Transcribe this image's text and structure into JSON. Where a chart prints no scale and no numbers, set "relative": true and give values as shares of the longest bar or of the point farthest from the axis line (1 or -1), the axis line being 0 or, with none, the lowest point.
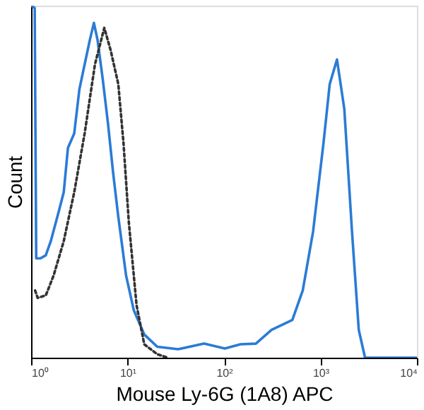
{
  "chart_data": {
    "type": "line",
    "xlabel": "Mouse Ly-6G (1A8) APC",
    "ylabel": "Count",
    "relative": true,
    "log": "x",
    "grid": false,
    "tick_labels": "x",
    "xlim": [
      1,
      10000
    ],
    "xticks": [
      {
        "value": 1,
        "label": "10⁰"
      },
      {
        "value": 10,
        "label": "10¹"
      },
      {
        "value": 100,
        "label": "10²"
      },
      {
        "value": 1000,
        "label": "10³"
      },
      {
        "value": 10000,
        "label": "10⁴"
      }
    ],
    "series": [
      {
        "color": "#2b7bd6",
        "line_style": "solid",
        "x": [
          1.01,
          1.09,
          1.13,
          1.25,
          1.42,
          1.6,
          1.93,
          2.18,
          2.41,
          2.8,
          3.17,
          3.59,
          4.06,
          4.48,
          4.89,
          5.53,
          6.27,
          7.08,
          8.02,
          9.66,
          11.6,
          14.9,
          20.3,
          33.4,
          62.1,
          102,
          148,
          214,
          311,
          511,
          655,
          838,
          1074,
          1247,
          1483,
          1766,
          2123,
          2495,
          2897,
          10000
        ],
        "values": [
          1.0,
          0.993,
          0.282,
          0.282,
          0.291,
          0.331,
          0.414,
          0.47,
          0.596,
          0.637,
          0.763,
          0.833,
          0.902,
          0.951,
          0.902,
          0.791,
          0.665,
          0.526,
          0.4,
          0.233,
          0.135,
          0.066,
          0.031,
          0.024,
          0.04,
          0.026,
          0.038,
          0.04,
          0.079,
          0.107,
          0.191,
          0.358,
          0.609,
          0.777,
          0.847,
          0.707,
          0.358,
          0.079,
          0,
          0
        ]
      },
      {
        "color": "#333333",
        "line_style": "dotted",
        "x": [
          1.1,
          1.17,
          1.42,
          1.71,
          2.18,
          2.8,
          3.59,
          4.59,
          5.74,
          6.67,
          8.02,
          9.08,
          10.3,
          12.4,
          14.9,
          20.3,
          26.1
        ],
        "values": [
          0.191,
          0.17,
          0.177,
          0.233,
          0.331,
          0.47,
          0.637,
          0.833,
          0.937,
          0.874,
          0.777,
          0.609,
          0.386,
          0.149,
          0.038,
          0.01,
          0
        ]
      }
    ]
  }
}
